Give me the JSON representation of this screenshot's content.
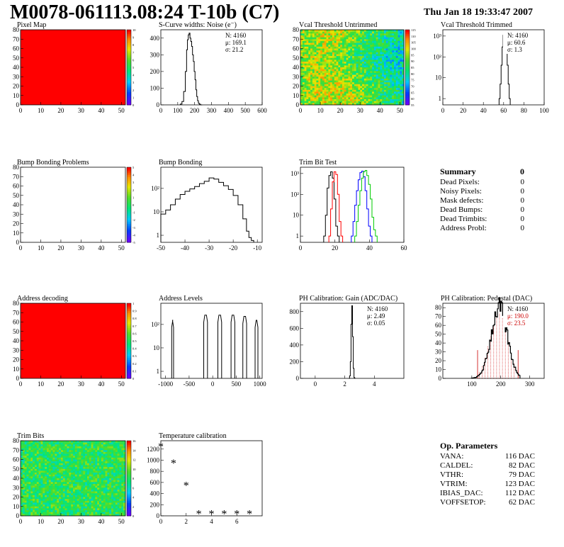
{
  "header": {
    "title": "M0078-061113.08:24 T-10b (C7)",
    "date": "Thu Jan 18 19:33:47 2007"
  },
  "colors": {
    "red": "#ff0000",
    "green_fill": "#4ccf30",
    "hist_line": "#000000",
    "trim_red": "#ff0000",
    "trim_blue": "#0000ff",
    "trim_green": "#00cc00",
    "pedestal_red": "#cc0000"
  },
  "summary": {
    "title": "Summary",
    "total": "0",
    "rows": [
      {
        "label": "Dead Pixels:",
        "value": "0"
      },
      {
        "label": "Noisy Pixels:",
        "value": "0"
      },
      {
        "label": "Mask defects:",
        "value": "0"
      },
      {
        "label": "Dead Bumps:",
        "value": "0"
      },
      {
        "label": "Dead Trimbits:",
        "value": "0"
      },
      {
        "label": "Address Probl:",
        "value": "0"
      }
    ]
  },
  "op_params": {
    "title": "Op. Parameters",
    "rows": [
      {
        "label": "VANA:",
        "value": "116 DAC"
      },
      {
        "label": "CALDEL:",
        "value": "82 DAC"
      },
      {
        "label": "VTHR:",
        "value": "79 DAC"
      },
      {
        "label": "VTRIM:",
        "value": "123 DAC"
      },
      {
        "label": "IBIAS_DAC:",
        "value": "112 DAC"
      },
      {
        "label": "VOFFSETOP:",
        "value": "62 DAC"
      }
    ]
  },
  "chart_data": [
    {
      "id": "pixel_map",
      "type": "heatmap",
      "title": "Pixel Map",
      "xlim": [
        0,
        52
      ],
      "ylim": [
        0,
        80
      ],
      "xticks": [
        "0",
        "10",
        "20",
        "30",
        "40",
        "50"
      ],
      "yticks": [
        "0",
        "10",
        "20",
        "30",
        "40",
        "50",
        "60",
        "70",
        "80"
      ],
      "fill": "uniform red",
      "palette_ticks": [
        "0",
        "1",
        "2",
        "3",
        "4",
        "5",
        "6",
        "7",
        "8",
        "9",
        "10"
      ]
    },
    {
      "id": "scurve",
      "type": "line",
      "title": "S-Curve widths: Noise (e⁻)",
      "xlim": [
        0,
        600
      ],
      "ylim": [
        0,
        450
      ],
      "xticks": [
        "0",
        "100",
        "200",
        "300",
        "400",
        "500",
        "600"
      ],
      "yticks": [
        "0",
        "100",
        "200",
        "300",
        "400"
      ],
      "stats": [
        "N: 4160",
        "μ: 169.1",
        "σ: 21.2"
      ],
      "x": [
        120,
        130,
        140,
        150,
        155,
        160,
        165,
        170,
        175,
        180,
        185,
        190,
        195,
        200,
        205,
        210,
        215,
        220,
        225,
        230,
        240
      ],
      "y": [
        5,
        20,
        80,
        200,
        330,
        390,
        420,
        430,
        400,
        380,
        350,
        300,
        260,
        200,
        150,
        90,
        50,
        25,
        10,
        4,
        0
      ]
    },
    {
      "id": "vcal_untrimmed",
      "type": "heatmap",
      "title": "Vcal Threshold Untrimmed",
      "xlim": [
        0,
        52
      ],
      "ylim": [
        0,
        80
      ],
      "xticks": [
        "0",
        "10",
        "20",
        "30",
        "40",
        "50"
      ],
      "yticks": [
        "0",
        "10",
        "20",
        "30",
        "40",
        "50",
        "60",
        "70",
        "80"
      ],
      "palette_ticks": [
        "55",
        "60",
        "65",
        "70",
        "75",
        "80",
        "85",
        "90",
        "95",
        "100",
        "105",
        "110",
        "115"
      ]
    },
    {
      "id": "vcal_trimmed",
      "type": "line",
      "title": "Vcal Threshold Trimmed",
      "xlim": [
        0,
        100
      ],
      "ylim": [
        0.5,
        2000
      ],
      "log_y": true,
      "xticks": [
        "0",
        "20",
        "40",
        "60",
        "80",
        "100"
      ],
      "yticks": [
        "1",
        "10",
        "10²",
        "10³"
      ],
      "stats": [
        "N: 4160",
        "μ: 60.6",
        "σ:  1.3"
      ],
      "x": [
        56,
        57,
        58,
        59,
        60,
        61,
        62,
        63,
        64,
        65,
        66
      ],
      "y": [
        1,
        5,
        40,
        300,
        1100,
        1500,
        900,
        250,
        40,
        5,
        1
      ]
    },
    {
      "id": "bump_problems",
      "type": "heatmap",
      "title": "Bump Bonding Problems",
      "xlim": [
        0,
        52
      ],
      "ylim": [
        0,
        80
      ],
      "xticks": [
        "0",
        "10",
        "20",
        "30",
        "40",
        "50"
      ],
      "yticks": [
        "0",
        "10",
        "20",
        "30",
        "40",
        "50",
        "60",
        "70",
        "80"
      ],
      "fill": "empty",
      "palette_ticks": [
        "-5",
        "-4",
        "-3",
        "-2",
        "-1",
        "0",
        "1",
        "2",
        "3",
        "4",
        "5"
      ]
    },
    {
      "id": "bump_bonding",
      "type": "line",
      "title": "Bump Bonding",
      "xlim": [
        -50,
        -8
      ],
      "ylim": [
        0.5,
        800
      ],
      "log_y": true,
      "xticks": [
        "-50",
        "-40",
        "-30",
        "-20",
        "-10"
      ],
      "yticks": [
        "1",
        "10",
        "10²"
      ],
      "x": [
        -49,
        -47,
        -45,
        -43,
        -41,
        -39,
        -37,
        -35,
        -33,
        -31,
        -29,
        -27,
        -25,
        -23,
        -21,
        -19,
        -17,
        -15,
        -14,
        -13,
        -12
      ],
      "y": [
        8,
        12,
        20,
        35,
        55,
        75,
        95,
        120,
        160,
        200,
        280,
        250,
        180,
        130,
        90,
        50,
        20,
        5,
        1.5,
        0.8,
        0.6
      ]
    },
    {
      "id": "trim_bit",
      "type": "line",
      "title": "Trim Bit Test",
      "xlim": [
        0,
        60
      ],
      "ylim": [
        0.5,
        2000
      ],
      "log_y": true,
      "xticks": [
        "0",
        "20",
        "40",
        "60"
      ],
      "yticks": [
        "1",
        "10",
        "10²",
        "10³"
      ],
      "series": [
        {
          "color": "#000000",
          "x": [
            14,
            15,
            16,
            17,
            18,
            19,
            20,
            21,
            22
          ],
          "y": [
            1,
            10,
            200,
            800,
            1200,
            600,
            60,
            3,
            1
          ]
        },
        {
          "color": "#ff0000",
          "x": [
            17,
            18,
            19,
            20,
            21,
            22,
            23,
            24
          ],
          "y": [
            1,
            20,
            400,
            1200,
            900,
            100,
            5,
            1
          ]
        },
        {
          "color": "#0000ff",
          "x": [
            30,
            31,
            32,
            33,
            34,
            35,
            36,
            37,
            38,
            39,
            40,
            41
          ],
          "y": [
            1,
            5,
            30,
            150,
            500,
            1100,
            1300,
            700,
            150,
            20,
            3,
            1
          ]
        },
        {
          "color": "#00cc00",
          "x": [
            32,
            33,
            34,
            35,
            36,
            37,
            38,
            39,
            40,
            41,
            42,
            43,
            44
          ],
          "y": [
            1,
            5,
            30,
            150,
            600,
            1200,
            1400,
            800,
            300,
            60,
            8,
            2,
            1
          ]
        }
      ]
    },
    {
      "id": "address_decoding",
      "type": "heatmap",
      "title": "Address decoding",
      "xlim": [
        0,
        52
      ],
      "ylim": [
        0,
        80
      ],
      "xticks": [
        "0",
        "10",
        "20",
        "30",
        "40",
        "50"
      ],
      "yticks": [
        "0",
        "10",
        "20",
        "30",
        "40",
        "50",
        "60",
        "70",
        "80"
      ],
      "fill": "uniform red",
      "palette_ticks": [
        "0",
        "0.1",
        "0.2",
        "0.3",
        "0.4",
        "0.5",
        "0.6",
        "0.7",
        "0.8",
        "0.9",
        "1"
      ]
    },
    {
      "id": "address_levels",
      "type": "line",
      "title": "Address Levels",
      "xlim": [
        -1100,
        1050
      ],
      "ylim": [
        0.5,
        800
      ],
      "log_y": true,
      "xticks": [
        "-1000",
        "-500",
        "0",
        "500",
        "1000"
      ],
      "yticks": [
        "1",
        "10",
        "10²"
      ],
      "peaks": [
        {
          "center": -850,
          "width": 40,
          "height": 150
        },
        {
          "center": -150,
          "width": 80,
          "height": 250
        },
        {
          "center": 150,
          "width": 80,
          "height": 250
        },
        {
          "center": 430,
          "width": 80,
          "height": 250
        },
        {
          "center": 680,
          "width": 80,
          "height": 220
        },
        {
          "center": 930,
          "width": 60,
          "height": 150
        }
      ]
    },
    {
      "id": "ph_gain",
      "type": "line",
      "title": "PH Calibration: Gain (ADC/DAC)",
      "xlim": [
        -1,
        6
      ],
      "ylim": [
        0,
        900
      ],
      "xticks": [
        "0",
        "2",
        "4"
      ],
      "yticks": [
        "0",
        "200",
        "400",
        "600",
        "800"
      ],
      "stats": [
        "N: 4160",
        "μ: 2.49",
        "σ: 0.05"
      ],
      "x": [
        2.3,
        2.35,
        2.4,
        2.45,
        2.5,
        2.55,
        2.6,
        2.65,
        2.7
      ],
      "y": [
        0,
        30,
        200,
        650,
        870,
        500,
        120,
        10,
        0
      ]
    },
    {
      "id": "ph_pedestal",
      "type": "bar",
      "title": "PH Calibration: Pedestal (DAC)",
      "xlim": [
        0,
        350
      ],
      "ylim": [
        0,
        85
      ],
      "xticks": [
        "100",
        "200",
        "300"
      ],
      "yticks": [
        "0",
        "10",
        "20",
        "30",
        "40",
        "50",
        "60",
        "70",
        "80"
      ],
      "stats": [
        "N: 4160",
        "μ: 190.0",
        "σ: 23.5"
      ],
      "x": [
        100,
        110,
        120,
        130,
        140,
        150,
        160,
        170,
        180,
        190,
        200,
        210,
        220,
        230,
        240,
        250,
        260
      ],
      "y": [
        1,
        3,
        8,
        15,
        25,
        38,
        50,
        62,
        72,
        78,
        72,
        60,
        45,
        30,
        18,
        8,
        2
      ]
    },
    {
      "id": "trim_bits",
      "type": "heatmap",
      "title": "Trim Bits",
      "xlim": [
        0,
        52
      ],
      "ylim": [
        0,
        80
      ],
      "xticks": [
        "0",
        "10",
        "20",
        "30",
        "40",
        "50"
      ],
      "yticks": [
        "0",
        "10",
        "20",
        "30",
        "40",
        "50",
        "60",
        "70",
        "80"
      ],
      "palette_ticks": [
        "0",
        "2",
        "4",
        "6",
        "8",
        "10",
        "12",
        "14",
        "16"
      ]
    },
    {
      "id": "temp_calib",
      "type": "scatter",
      "title": "Temperature calibration",
      "xlim": [
        0,
        8
      ],
      "ylim": [
        0,
        1350
      ],
      "xticks": [
        "0",
        "2",
        "4",
        "6"
      ],
      "yticks": [
        "0",
        "200",
        "400",
        "600",
        "800",
        "1000",
        "1200"
      ],
      "x": [
        0,
        1,
        2,
        3,
        4,
        5,
        6,
        7
      ],
      "y": [
        1240,
        940,
        540,
        30,
        30,
        30,
        30,
        30
      ]
    }
  ]
}
